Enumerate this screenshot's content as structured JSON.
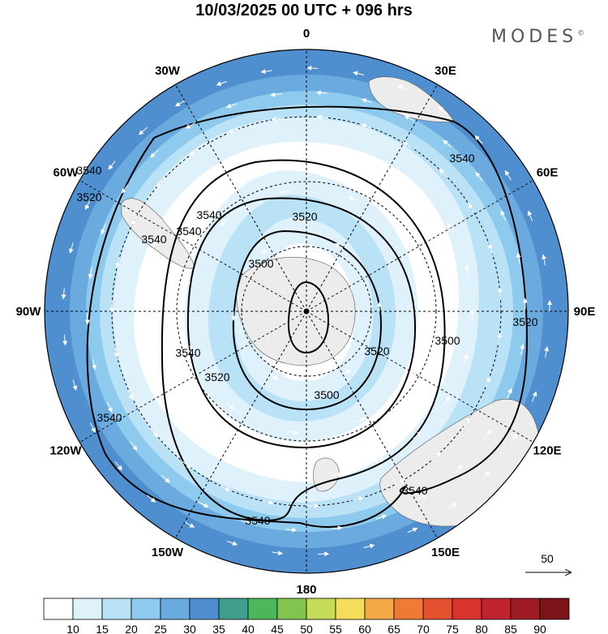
{
  "title": "10/03/2025  00 UTC  + 096 hrs",
  "brand": "MODES",
  "brand_mark": "©",
  "lon_labels": [
    {
      "text": "0",
      "angle": 0
    },
    {
      "text": "30E",
      "angle": 30
    },
    {
      "text": "60E",
      "angle": 60
    },
    {
      "text": "90E",
      "angle": 90
    },
    {
      "text": "120E",
      "angle": 120
    },
    {
      "text": "150E",
      "angle": 150
    },
    {
      "text": "180",
      "angle": 180
    },
    {
      "text": "150W",
      "angle": 210
    },
    {
      "text": "120W",
      "angle": 240
    },
    {
      "text": "90W",
      "angle": 270
    },
    {
      "text": "60W",
      "angle": 300
    },
    {
      "text": "30W",
      "angle": 330
    }
  ],
  "contour_labels": [
    "3540",
    "3540",
    "3520",
    "3540",
    "3540",
    "3540",
    "3540",
    "3520",
    "3500",
    "3520",
    "3500",
    "3520",
    "3540",
    "3540",
    "3540",
    "3520",
    "3500"
  ],
  "vector_reference": {
    "value": "50",
    "label": "50"
  },
  "colorbar": {
    "ticks": [
      "10",
      "15",
      "20",
      "25",
      "30",
      "35",
      "40",
      "45",
      "50",
      "55",
      "60",
      "65",
      "70",
      "75",
      "80",
      "85",
      "90"
    ],
    "colors": [
      "#ffffff",
      "#dff1fb",
      "#b9e2f7",
      "#8ec9ee",
      "#6aaadf",
      "#4f8fcf",
      "#3f9e8e",
      "#4cb65a",
      "#82c44e",
      "#c5dc58",
      "#f4dd5b",
      "#f3aa46",
      "#ee7a34",
      "#e4512e",
      "#d8332d",
      "#c0222e",
      "#9e1a24",
      "#7a1418"
    ]
  },
  "colors": {
    "ocean_land": "#ececec",
    "contour": "#000000",
    "arrow": "#ffffff"
  }
}
